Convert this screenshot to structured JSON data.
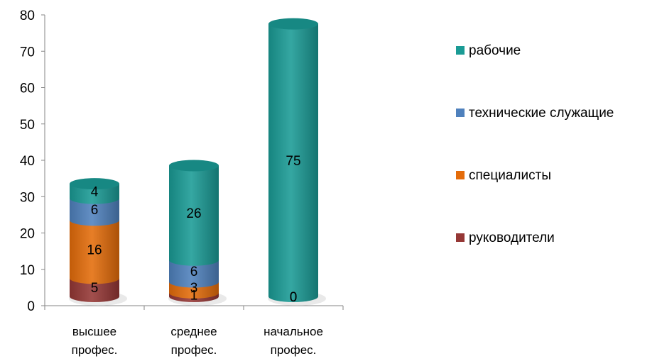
{
  "chart_data": {
    "type": "bar",
    "stacked": true,
    "style": "3d-cylinder",
    "categories": [
      [
        "высшее",
        "профес."
      ],
      [
        "среднее",
        "профес."
      ],
      [
        "начальное",
        "профес."
      ]
    ],
    "series": [
      {
        "name": "руководители",
        "values": [
          5,
          1,
          0
        ],
        "color": "#953735"
      },
      {
        "name": "специалисты",
        "values": [
          16,
          3,
          0
        ],
        "color": "#E46C0A"
      },
      {
        "name": "технические служащие",
        "values": [
          6,
          6,
          0
        ],
        "color": "#4F81BD"
      },
      {
        "name": "рабочие",
        "values": [
          4,
          26,
          75
        ],
        "color": "#1A9B95"
      }
    ],
    "data_labels": [
      [
        "5",
        "1",
        "0"
      ],
      [
        "16",
        "3",
        "0"
      ],
      [
        "6",
        "6",
        ""
      ],
      [
        "4",
        "26",
        "75"
      ]
    ],
    "y_ticks": [
      "0",
      "10",
      "20",
      "30",
      "40",
      "50",
      "60",
      "70",
      "80"
    ],
    "ylim": [
      0,
      80
    ],
    "grid": false,
    "legend_position": "right",
    "legend_order": [
      "рабочие",
      "технические служащие",
      "специалисты",
      "руководители"
    ]
  }
}
